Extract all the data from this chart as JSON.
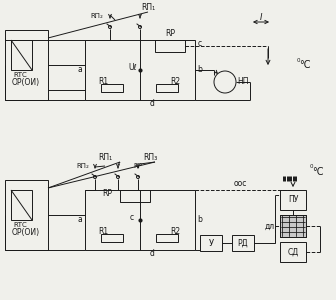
{
  "bg_color": "#f0f0eb",
  "line_color": "#1a1a1a",
  "labels": {
    "Rp1": "RП₁",
    "Rp2": "RП₂",
    "Rp3": "RП₃",
    "Rp": "RР",
    "RTC": "RТС",
    "OI": "ОР(ОИ)",
    "R1": "R1",
    "R2": "R2",
    "Ud": "Uℓ",
    "NP": "НП",
    "a": "a",
    "b": "b",
    "c": "c",
    "d": "d",
    "I": "I",
    "C": "°C",
    "ooc": "оос",
    "U": "У",
    "RD": "РД",
    "DL": "дл",
    "SD": "СД",
    "PU": "ПУ"
  }
}
